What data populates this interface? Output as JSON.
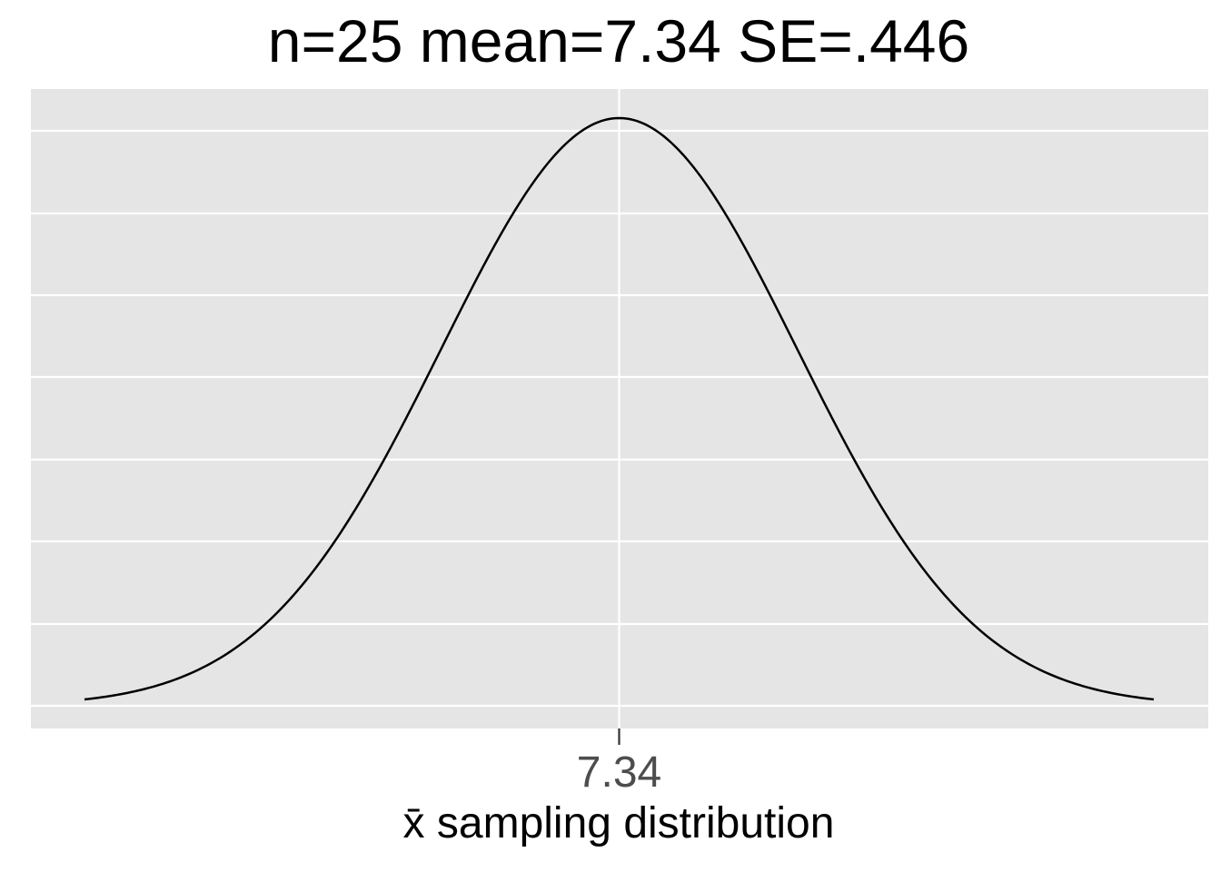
{
  "chart_data": {
    "type": "line",
    "title": "n=25   mean=7.34   SE=.446",
    "xlabel": "x̄ sampling distribution",
    "ylabel": "",
    "distribution": "normal",
    "mean": 7.34,
    "se": 0.446,
    "n": 25,
    "x_range_sd": [
      -3,
      3
    ],
    "x_ticks": [
      7.34
    ],
    "x_tick_labels": [
      "7.34"
    ],
    "y_tick_labels_shown": false,
    "grid": true,
    "panel_background": "#e5e5e5",
    "grid_color": "#ffffff",
    "line_color": "#000000"
  }
}
